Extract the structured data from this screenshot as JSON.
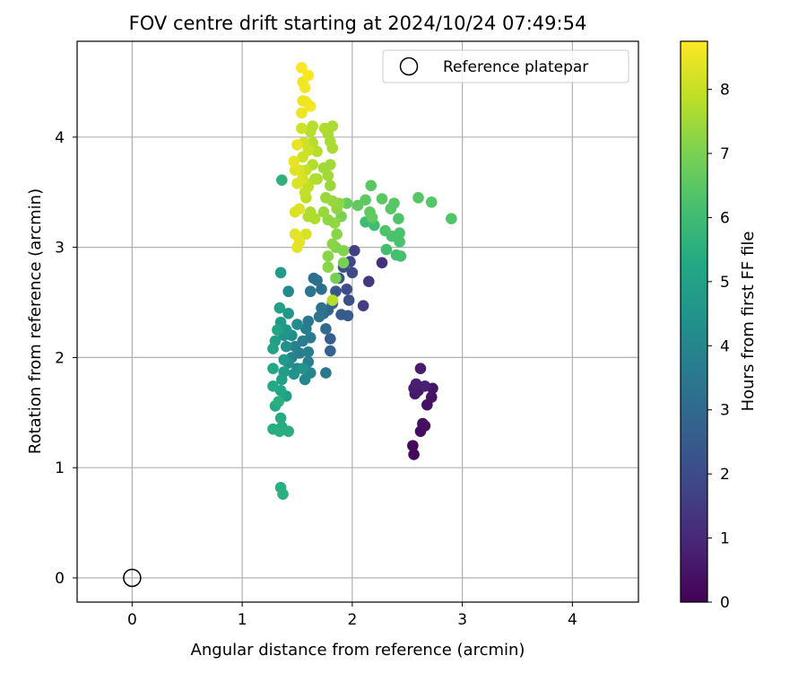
{
  "chart_data": {
    "type": "scatter",
    "title": "FOV centre drift starting at 2024/10/24 07:49:54",
    "xlabel": "Angular distance from reference (arcmin)",
    "ylabel": "Rotation from reference (arcmin)",
    "xlim": [
      -0.5,
      4.6
    ],
    "ylim": [
      -0.22,
      4.87
    ],
    "xticks": [
      0,
      1,
      2,
      3,
      4
    ],
    "yticks": [
      0,
      1,
      2,
      3,
      4
    ],
    "grid": true,
    "legend": {
      "position": "top-right",
      "entries": [
        "Reference platepar"
      ]
    },
    "reference_point": {
      "x": 0,
      "y": 0
    },
    "colorbar": {
      "label": "Hours from first FF file",
      "colormap": "viridis",
      "range": [
        0,
        8.75
      ],
      "ticks": [
        0,
        1,
        2,
        3,
        4,
        5,
        6,
        7,
        8
      ]
    },
    "points": [
      {
        "x": 2.56,
        "y": 1.12,
        "h": 0.15
      },
      {
        "x": 2.55,
        "y": 1.2,
        "h": 0.2
      },
      {
        "x": 2.62,
        "y": 1.33,
        "h": 0.3
      },
      {
        "x": 2.66,
        "y": 1.38,
        "h": 0.3
      },
      {
        "x": 2.64,
        "y": 1.4,
        "h": 0.35
      },
      {
        "x": 2.68,
        "y": 1.57,
        "h": 0.4
      },
      {
        "x": 2.72,
        "y": 1.64,
        "h": 0.45
      },
      {
        "x": 2.73,
        "y": 1.72,
        "h": 0.5
      },
      {
        "x": 2.57,
        "y": 1.67,
        "h": 0.55
      },
      {
        "x": 2.6,
        "y": 1.7,
        "h": 0.6
      },
      {
        "x": 2.56,
        "y": 1.72,
        "h": 0.65
      },
      {
        "x": 2.62,
        "y": 1.9,
        "h": 0.7
      },
      {
        "x": 2.58,
        "y": 1.76,
        "h": 0.75
      },
      {
        "x": 2.66,
        "y": 1.74,
        "h": 0.8
      },
      {
        "x": 2.27,
        "y": 2.86,
        "h": 1.2
      },
      {
        "x": 2.15,
        "y": 2.69,
        "h": 1.4
      },
      {
        "x": 2.1,
        "y": 2.47,
        "h": 1.6
      },
      {
        "x": 2.02,
        "y": 2.97,
        "h": 1.7
      },
      {
        "x": 1.98,
        "y": 2.87,
        "h": 1.8
      },
      {
        "x": 2.0,
        "y": 2.77,
        "h": 1.9
      },
      {
        "x": 1.95,
        "y": 2.62,
        "h": 2.0
      },
      {
        "x": 1.97,
        "y": 2.52,
        "h": 2.1
      },
      {
        "x": 1.92,
        "y": 2.82,
        "h": 2.2
      },
      {
        "x": 1.88,
        "y": 2.72,
        "h": 2.3
      },
      {
        "x": 1.85,
        "y": 2.6,
        "h": 2.4
      },
      {
        "x": 1.9,
        "y": 2.39,
        "h": 2.5
      },
      {
        "x": 1.96,
        "y": 2.38,
        "h": 2.5
      },
      {
        "x": 1.8,
        "y": 2.17,
        "h": 2.6
      },
      {
        "x": 1.8,
        "y": 2.06,
        "h": 2.7
      },
      {
        "x": 1.82,
        "y": 2.49,
        "h": 2.8
      },
      {
        "x": 1.78,
        "y": 2.43,
        "h": 2.9
      },
      {
        "x": 1.74,
        "y": 2.4,
        "h": 3.0
      },
      {
        "x": 1.76,
        "y": 2.26,
        "h": 3.0
      },
      {
        "x": 1.72,
        "y": 2.62,
        "h": 3.1
      },
      {
        "x": 1.68,
        "y": 2.7,
        "h": 3.2
      },
      {
        "x": 1.65,
        "y": 2.72,
        "h": 3.2
      },
      {
        "x": 1.72,
        "y": 2.45,
        "h": 3.3
      },
      {
        "x": 1.7,
        "y": 2.37,
        "h": 3.4
      },
      {
        "x": 1.62,
        "y": 2.6,
        "h": 3.4
      },
      {
        "x": 1.76,
        "y": 1.86,
        "h": 3.5
      },
      {
        "x": 1.6,
        "y": 2.33,
        "h": 3.5
      },
      {
        "x": 1.62,
        "y": 2.18,
        "h": 3.6
      },
      {
        "x": 1.58,
        "y": 2.26,
        "h": 3.6
      },
      {
        "x": 1.55,
        "y": 2.15,
        "h": 3.7
      },
      {
        "x": 1.52,
        "y": 2.04,
        "h": 3.7
      },
      {
        "x": 1.6,
        "y": 2.05,
        "h": 3.8
      },
      {
        "x": 1.6,
        "y": 1.96,
        "h": 3.8
      },
      {
        "x": 1.48,
        "y": 2.1,
        "h": 3.9
      },
      {
        "x": 1.45,
        "y": 2.0,
        "h": 3.9
      },
      {
        "x": 1.62,
        "y": 1.86,
        "h": 4.0
      },
      {
        "x": 1.57,
        "y": 1.8,
        "h": 4.0
      },
      {
        "x": 1.5,
        "y": 1.9,
        "h": 4.1
      },
      {
        "x": 1.42,
        "y": 2.6,
        "h": 4.1
      },
      {
        "x": 1.45,
        "y": 2.2,
        "h": 4.2
      },
      {
        "x": 1.5,
        "y": 2.3,
        "h": 4.2
      },
      {
        "x": 1.4,
        "y": 2.1,
        "h": 4.3
      },
      {
        "x": 1.42,
        "y": 1.95,
        "h": 4.3
      },
      {
        "x": 1.38,
        "y": 2.2,
        "h": 4.4
      },
      {
        "x": 1.47,
        "y": 1.85,
        "h": 4.4
      },
      {
        "x": 1.55,
        "y": 1.9,
        "h": 4.5
      },
      {
        "x": 1.42,
        "y": 2.4,
        "h": 4.6
      },
      {
        "x": 1.4,
        "y": 2.25,
        "h": 4.6
      },
      {
        "x": 1.35,
        "y": 2.32,
        "h": 4.7
      },
      {
        "x": 1.38,
        "y": 1.98,
        "h": 4.7
      },
      {
        "x": 1.35,
        "y": 2.77,
        "h": 4.8
      },
      {
        "x": 1.38,
        "y": 1.87,
        "h": 4.8
      },
      {
        "x": 1.4,
        "y": 1.65,
        "h": 4.9
      },
      {
        "x": 1.3,
        "y": 2.15,
        "h": 4.9
      },
      {
        "x": 1.36,
        "y": 1.8,
        "h": 5.0
      },
      {
        "x": 1.34,
        "y": 2.45,
        "h": 5.0
      },
      {
        "x": 1.32,
        "y": 2.25,
        "h": 5.1
      },
      {
        "x": 1.28,
        "y": 2.08,
        "h": 5.1
      },
      {
        "x": 1.35,
        "y": 1.7,
        "h": 5.2
      },
      {
        "x": 1.28,
        "y": 1.9,
        "h": 5.2
      },
      {
        "x": 1.28,
        "y": 1.74,
        "h": 5.3
      },
      {
        "x": 1.3,
        "y": 1.56,
        "h": 5.3
      },
      {
        "x": 1.35,
        "y": 1.45,
        "h": 5.35
      },
      {
        "x": 1.36,
        "y": 1.37,
        "h": 5.4
      },
      {
        "x": 1.28,
        "y": 1.35,
        "h": 5.4
      },
      {
        "x": 1.34,
        "y": 1.33,
        "h": 5.45
      },
      {
        "x": 1.42,
        "y": 1.33,
        "h": 5.45
      },
      {
        "x": 1.33,
        "y": 1.6,
        "h": 5.5
      },
      {
        "x": 1.35,
        "y": 0.82,
        "h": 5.5
      },
      {
        "x": 1.37,
        "y": 0.76,
        "h": 5.55
      },
      {
        "x": 1.36,
        "y": 3.61,
        "h": 5.6
      },
      {
        "x": 2.12,
        "y": 3.23,
        "h": 6.0
      },
      {
        "x": 2.2,
        "y": 3.2,
        "h": 6.05
      },
      {
        "x": 2.31,
        "y": 2.98,
        "h": 6.1
      },
      {
        "x": 2.4,
        "y": 2.93,
        "h": 6.1
      },
      {
        "x": 2.44,
        "y": 2.92,
        "h": 6.15
      },
      {
        "x": 2.36,
        "y": 3.1,
        "h": 6.2
      },
      {
        "x": 2.43,
        "y": 3.05,
        "h": 6.2
      },
      {
        "x": 2.43,
        "y": 3.13,
        "h": 6.25
      },
      {
        "x": 2.3,
        "y": 3.15,
        "h": 6.3
      },
      {
        "x": 2.42,
        "y": 3.26,
        "h": 6.3
      },
      {
        "x": 2.9,
        "y": 3.26,
        "h": 6.35
      },
      {
        "x": 2.72,
        "y": 3.41,
        "h": 6.4
      },
      {
        "x": 2.6,
        "y": 3.45,
        "h": 6.4
      },
      {
        "x": 2.35,
        "y": 3.35,
        "h": 6.45
      },
      {
        "x": 2.38,
        "y": 3.4,
        "h": 6.45
      },
      {
        "x": 2.27,
        "y": 3.44,
        "h": 6.5
      },
      {
        "x": 2.17,
        "y": 3.56,
        "h": 6.5
      },
      {
        "x": 2.12,
        "y": 3.43,
        "h": 6.55
      },
      {
        "x": 2.16,
        "y": 3.32,
        "h": 6.55
      },
      {
        "x": 2.05,
        "y": 3.38,
        "h": 6.6
      },
      {
        "x": 2.18,
        "y": 3.27,
        "h": 6.6
      },
      {
        "x": 1.95,
        "y": 3.4,
        "h": 6.7
      },
      {
        "x": 1.85,
        "y": 2.72,
        "h": 6.9
      },
      {
        "x": 1.92,
        "y": 2.86,
        "h": 7.0
      },
      {
        "x": 1.9,
        "y": 3.28,
        "h": 7.0
      },
      {
        "x": 1.92,
        "y": 2.97,
        "h": 7.1
      },
      {
        "x": 1.85,
        "y": 3.0,
        "h": 7.1
      },
      {
        "x": 1.86,
        "y": 3.12,
        "h": 7.2
      },
      {
        "x": 1.82,
        "y": 3.03,
        "h": 7.2
      },
      {
        "x": 1.78,
        "y": 2.92,
        "h": 7.2
      },
      {
        "x": 1.78,
        "y": 2.82,
        "h": 7.2
      },
      {
        "x": 1.84,
        "y": 3.22,
        "h": 7.3
      },
      {
        "x": 1.86,
        "y": 3.35,
        "h": 7.3
      },
      {
        "x": 1.78,
        "y": 3.25,
        "h": 7.3
      },
      {
        "x": 1.88,
        "y": 3.4,
        "h": 7.3
      },
      {
        "x": 1.82,
        "y": 3.42,
        "h": 7.4
      },
      {
        "x": 1.76,
        "y": 3.45,
        "h": 7.4
      },
      {
        "x": 1.74,
        "y": 3.32,
        "h": 7.4
      },
      {
        "x": 1.8,
        "y": 3.56,
        "h": 7.4
      },
      {
        "x": 1.78,
        "y": 3.65,
        "h": 7.5
      },
      {
        "x": 1.74,
        "y": 3.72,
        "h": 7.5
      },
      {
        "x": 1.8,
        "y": 3.75,
        "h": 7.5
      },
      {
        "x": 1.68,
        "y": 3.62,
        "h": 7.5
      },
      {
        "x": 1.82,
        "y": 3.9,
        "h": 7.6
      },
      {
        "x": 1.8,
        "y": 3.96,
        "h": 7.6
      },
      {
        "x": 1.78,
        "y": 4.03,
        "h": 7.6
      },
      {
        "x": 1.82,
        "y": 4.1,
        "h": 7.6
      },
      {
        "x": 1.75,
        "y": 4.08,
        "h": 7.7
      },
      {
        "x": 1.62,
        "y": 3.32,
        "h": 7.7
      },
      {
        "x": 1.66,
        "y": 3.26,
        "h": 7.7
      },
      {
        "x": 1.6,
        "y": 3.28,
        "h": 7.7
      },
      {
        "x": 1.66,
        "y": 3.62,
        "h": 7.75
      },
      {
        "x": 1.64,
        "y": 3.75,
        "h": 7.75
      },
      {
        "x": 1.68,
        "y": 3.87,
        "h": 7.8
      },
      {
        "x": 1.64,
        "y": 3.95,
        "h": 7.8
      },
      {
        "x": 1.62,
        "y": 4.05,
        "h": 7.8
      },
      {
        "x": 1.64,
        "y": 4.1,
        "h": 7.8
      },
      {
        "x": 1.82,
        "y": 2.52,
        "h": 7.8
      },
      {
        "x": 1.6,
        "y": 3.55,
        "h": 7.9
      },
      {
        "x": 1.58,
        "y": 3.45,
        "h": 7.9
      },
      {
        "x": 1.57,
        "y": 3.5,
        "h": 7.95
      },
      {
        "x": 1.56,
        "y": 3.6,
        "h": 8.0
      },
      {
        "x": 1.58,
        "y": 3.7,
        "h": 8.0
      },
      {
        "x": 1.55,
        "y": 3.82,
        "h": 8.1
      },
      {
        "x": 1.6,
        "y": 3.88,
        "h": 8.1
      },
      {
        "x": 1.56,
        "y": 3.95,
        "h": 8.1
      },
      {
        "x": 1.54,
        "y": 4.08,
        "h": 8.1
      },
      {
        "x": 1.55,
        "y": 3.62,
        "h": 8.2
      },
      {
        "x": 1.52,
        "y": 3.7,
        "h": 8.2
      },
      {
        "x": 1.58,
        "y": 3.12,
        "h": 8.2
      },
      {
        "x": 1.52,
        "y": 3.35,
        "h": 8.3
      },
      {
        "x": 1.48,
        "y": 3.32,
        "h": 8.3
      },
      {
        "x": 1.5,
        "y": 3.58,
        "h": 8.3
      },
      {
        "x": 1.48,
        "y": 3.7,
        "h": 8.35
      },
      {
        "x": 1.52,
        "y": 3.05,
        "h": 8.4
      },
      {
        "x": 1.5,
        "y": 3.0,
        "h": 8.4
      },
      {
        "x": 1.48,
        "y": 3.12,
        "h": 8.4
      },
      {
        "x": 1.47,
        "y": 3.78,
        "h": 8.45
      },
      {
        "x": 1.5,
        "y": 3.93,
        "h": 8.45
      },
      {
        "x": 1.54,
        "y": 4.22,
        "h": 8.5
      },
      {
        "x": 1.55,
        "y": 4.33,
        "h": 8.5
      },
      {
        "x": 1.58,
        "y": 4.32,
        "h": 8.55
      },
      {
        "x": 1.55,
        "y": 4.5,
        "h": 8.55
      },
      {
        "x": 1.57,
        "y": 4.45,
        "h": 8.6
      },
      {
        "x": 1.62,
        "y": 4.28,
        "h": 8.6
      },
      {
        "x": 1.6,
        "y": 4.56,
        "h": 8.7
      },
      {
        "x": 1.54,
        "y": 4.63,
        "h": 8.7
      }
    ]
  }
}
